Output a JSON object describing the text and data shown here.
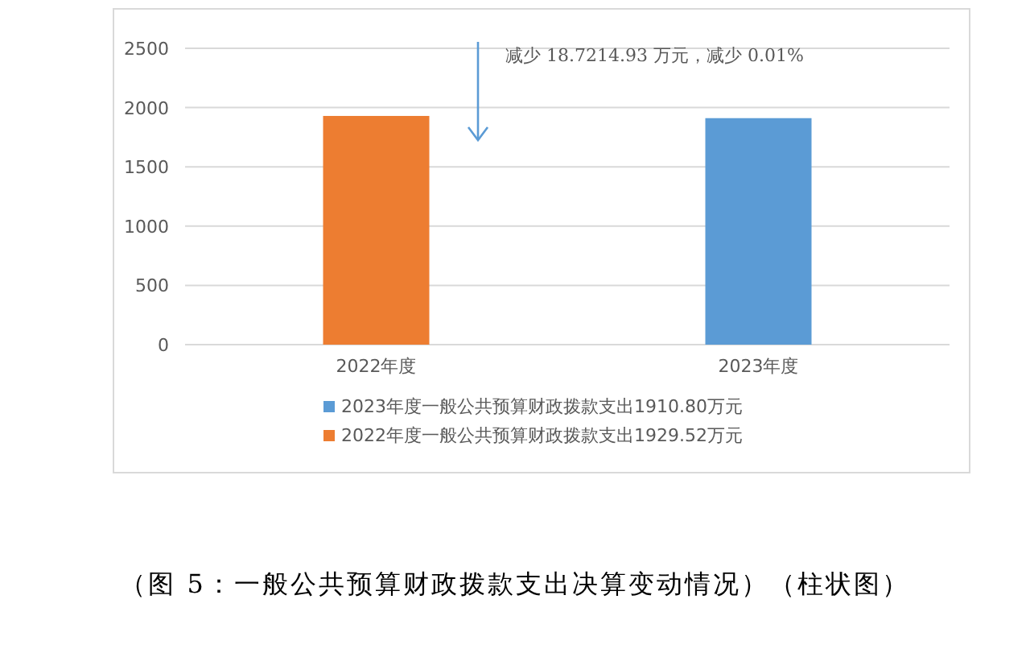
{
  "chart_data": {
    "type": "bar",
    "categories": [
      "2022年度",
      "2023年度"
    ],
    "series": [
      {
        "name": "2023年度一般公共预算财政拨款支出1910.80万元",
        "color": "#5b9bd5",
        "values": [
          null,
          1910.8
        ]
      },
      {
        "name": "2022年度一般公共预算财政拨款支出1929.52万元",
        "color": "#ed7d31",
        "values": [
          1929.52,
          null
        ]
      }
    ],
    "ylim": [
      0,
      2500
    ],
    "yticks": [
      0,
      500,
      1000,
      1500,
      2000,
      2500
    ],
    "grid": "y",
    "legend": "bottom",
    "annotations": [
      "减少 18.7214.93 万元，减少 0.01%",
      "（图 5：一般公共预算财政拨款支出决算变动情况）（柱状图）"
    ]
  }
}
